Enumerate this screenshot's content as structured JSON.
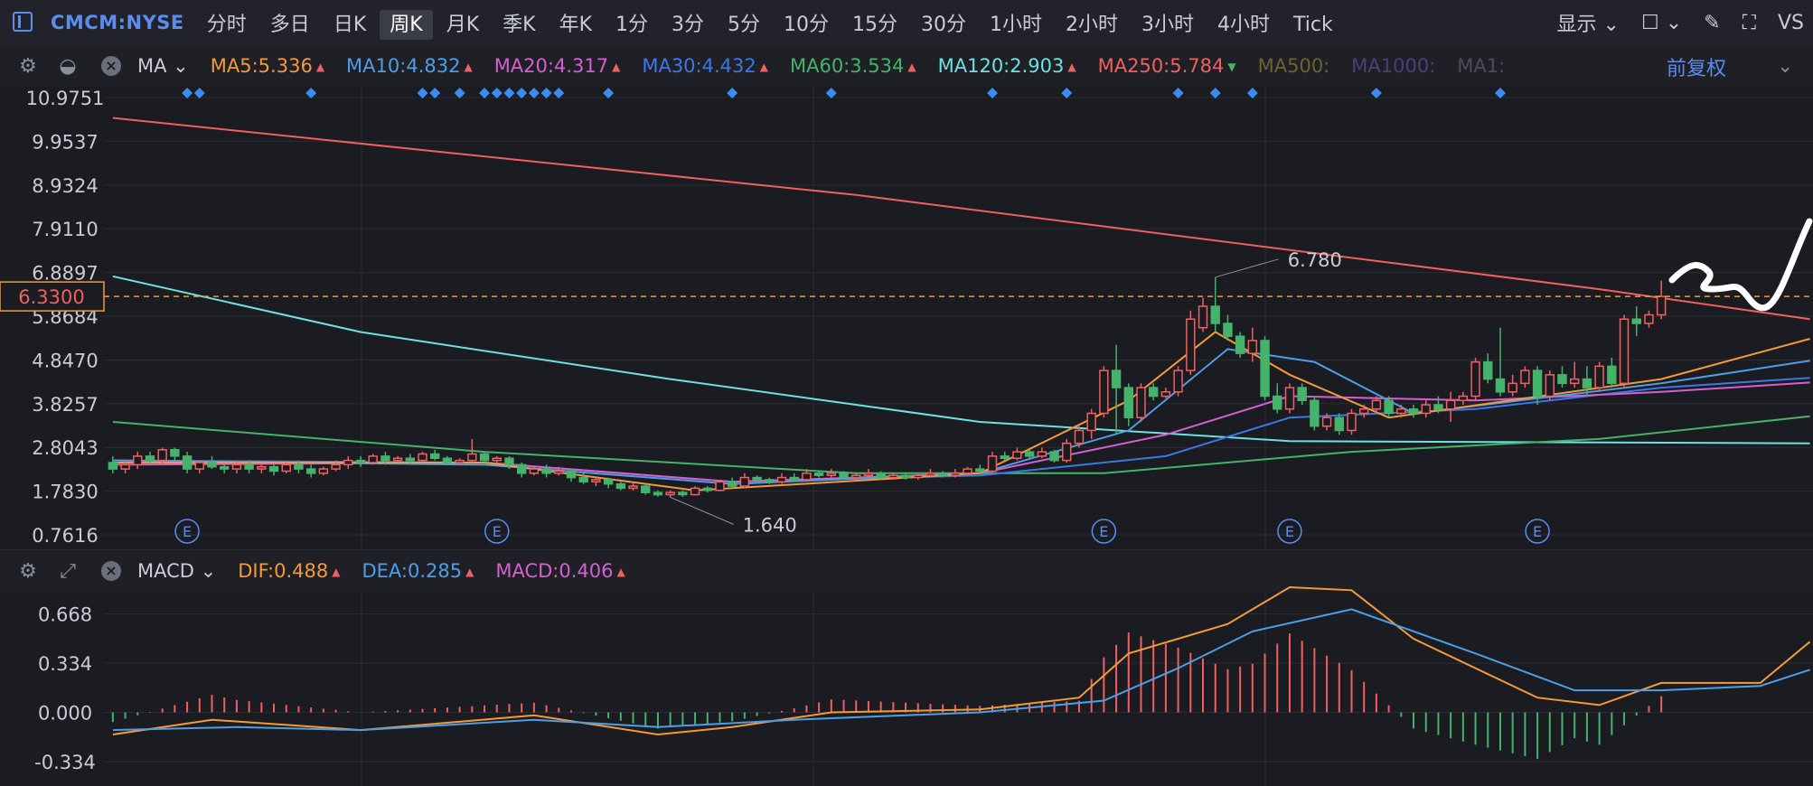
{
  "toolbar": {
    "symbol": "CMCM:NYSE",
    "timeframes": [
      "分时",
      "多日",
      "日K",
      "周K",
      "月K",
      "季K",
      "年K",
      "1分",
      "3分",
      "5分",
      "10分",
      "15分",
      "30分",
      "1小时",
      "2小时",
      "3小时",
      "4小时",
      "Tick"
    ],
    "active_timeframe": "周K",
    "display_label": "显示",
    "vs_label": "VS"
  },
  "ma_bar": {
    "selector": "MA",
    "items": [
      {
        "label": "MA5:5.336",
        "color": "#f29a3b",
        "arrow": "up"
      },
      {
        "label": "MA10:4.832",
        "color": "#4d9ee8",
        "arrow": "up"
      },
      {
        "label": "MA20:4.317",
        "color": "#d55fd0",
        "arrow": "up"
      },
      {
        "label": "MA30:4.432",
        "color": "#3b78e6",
        "arrow": "up"
      },
      {
        "label": "MA60:3.534",
        "color": "#45b36b",
        "arrow": "up"
      },
      {
        "label": "MA120:2.903",
        "color": "#6fe0e0",
        "arrow": "up"
      },
      {
        "label": "MA250:5.784",
        "color": "#f06060",
        "arrow": "down"
      },
      {
        "label": "MA500:",
        "color": "#6b6430",
        "arrow": ""
      },
      {
        "label": "MA1000:",
        "color": "#4b3f7a",
        "arrow": ""
      },
      {
        "label": "MA1:",
        "color": "#4a4d57",
        "arrow": ""
      }
    ],
    "adjust_label": "前复权"
  },
  "macd_bar": {
    "selector": "MACD",
    "items": [
      {
        "label": "DIF:0.488",
        "color": "#f29a3b"
      },
      {
        "label": "DEA:0.285",
        "color": "#4d9ee8"
      },
      {
        "label": "MACD:0.406",
        "color": "#d55fd0"
      }
    ]
  },
  "chart_data": {
    "type": "candlestick",
    "price_axis": {
      "ticks": [
        "10.9751",
        "9.9537",
        "8.9324",
        "7.9110",
        "6.8897",
        "5.8684",
        "4.8470",
        "3.8257",
        "2.8043",
        "1.7830",
        "0.7616"
      ],
      "range": [
        0.7616,
        10.9751
      ]
    },
    "current_price": "6.3300",
    "annotations": [
      {
        "text": "6.780",
        "value": 6.78,
        "type": "high"
      },
      {
        "text": "1.640",
        "value": 1.64,
        "type": "low"
      }
    ],
    "earnings_marker": "E",
    "candles": [
      [
        2.45,
        2.3,
        2.6,
        2.2
      ],
      [
        2.3,
        2.4,
        2.5,
        2.2
      ],
      [
        2.4,
        2.6,
        2.7,
        2.3
      ],
      [
        2.6,
        2.5,
        2.7,
        2.4
      ],
      [
        2.5,
        2.75,
        2.8,
        2.4
      ],
      [
        2.75,
        2.6,
        2.8,
        2.5
      ],
      [
        2.6,
        2.3,
        2.7,
        2.2
      ],
      [
        2.3,
        2.45,
        2.5,
        2.2
      ],
      [
        2.45,
        2.35,
        2.6,
        2.3
      ],
      [
        2.35,
        2.3,
        2.4,
        2.2
      ],
      [
        2.3,
        2.4,
        2.5,
        2.2
      ],
      [
        2.4,
        2.3,
        2.5,
        2.2
      ],
      [
        2.3,
        2.35,
        2.4,
        2.2
      ],
      [
        2.35,
        2.25,
        2.4,
        2.15
      ],
      [
        2.25,
        2.4,
        2.45,
        2.2
      ],
      [
        2.4,
        2.3,
        2.5,
        2.2
      ],
      [
        2.3,
        2.2,
        2.4,
        2.1
      ],
      [
        2.2,
        2.3,
        2.35,
        2.15
      ],
      [
        2.3,
        2.4,
        2.5,
        2.25
      ],
      [
        2.4,
        2.5,
        2.6,
        2.3
      ],
      [
        2.5,
        2.45,
        2.6,
        2.35
      ],
      [
        2.45,
        2.6,
        2.65,
        2.4
      ],
      [
        2.6,
        2.5,
        2.7,
        2.4
      ],
      [
        2.5,
        2.55,
        2.6,
        2.45
      ],
      [
        2.55,
        2.5,
        2.65,
        2.4
      ],
      [
        2.5,
        2.65,
        2.7,
        2.45
      ],
      [
        2.65,
        2.55,
        2.75,
        2.5
      ],
      [
        2.55,
        2.45,
        2.6,
        2.4
      ],
      [
        2.45,
        2.5,
        2.55,
        2.4
      ],
      [
        2.5,
        2.65,
        3.0,
        2.45
      ],
      [
        2.65,
        2.5,
        2.7,
        2.4
      ],
      [
        2.5,
        2.55,
        2.6,
        2.45
      ],
      [
        2.55,
        2.4,
        2.6,
        2.3
      ],
      [
        2.4,
        2.2,
        2.45,
        2.1
      ],
      [
        2.2,
        2.3,
        2.35,
        2.15
      ],
      [
        2.3,
        2.2,
        2.4,
        2.1
      ],
      [
        2.2,
        2.25,
        2.35,
        2.15
      ],
      [
        2.25,
        2.1,
        2.3,
        2.0
      ],
      [
        2.1,
        2.0,
        2.2,
        1.95
      ],
      [
        2.0,
        2.05,
        2.1,
        1.9
      ],
      [
        2.05,
        1.95,
        2.1,
        1.85
      ],
      [
        1.95,
        1.85,
        2.0,
        1.8
      ],
      [
        1.85,
        1.9,
        2.0,
        1.8
      ],
      [
        1.9,
        1.75,
        1.95,
        1.7
      ],
      [
        1.75,
        1.7,
        1.8,
        1.65
      ],
      [
        1.7,
        1.75,
        1.8,
        1.64
      ],
      [
        1.75,
        1.7,
        1.8,
        1.65
      ],
      [
        1.7,
        1.85,
        1.9,
        1.68
      ],
      [
        1.85,
        1.8,
        1.9,
        1.75
      ],
      [
        1.8,
        2.0,
        2.05,
        1.78
      ],
      [
        2.0,
        1.9,
        2.1,
        1.85
      ],
      [
        1.9,
        2.1,
        2.2,
        1.85
      ],
      [
        2.1,
        2.05,
        2.15,
        2.0
      ],
      [
        2.05,
        2.0,
        2.1,
        1.95
      ],
      [
        2.0,
        2.1,
        2.2,
        1.95
      ],
      [
        2.1,
        2.05,
        2.2,
        2.0
      ],
      [
        2.05,
        2.2,
        2.3,
        2.0
      ],
      [
        2.2,
        2.15,
        2.25,
        2.1
      ],
      [
        2.15,
        2.2,
        2.3,
        2.1
      ],
      [
        2.2,
        2.1,
        2.25,
        2.05
      ],
      [
        2.1,
        2.15,
        2.2,
        2.05
      ],
      [
        2.15,
        2.2,
        2.3,
        2.1
      ],
      [
        2.2,
        2.1,
        2.25,
        2.05
      ],
      [
        2.1,
        2.15,
        2.2,
        2.05
      ],
      [
        2.15,
        2.1,
        2.2,
        2.05
      ],
      [
        2.1,
        2.15,
        2.2,
        2.05
      ],
      [
        2.15,
        2.2,
        2.3,
        2.1
      ],
      [
        2.2,
        2.15,
        2.25,
        2.1
      ],
      [
        2.15,
        2.2,
        2.3,
        2.1
      ],
      [
        2.2,
        2.3,
        2.35,
        2.15
      ],
      [
        2.3,
        2.25,
        2.4,
        2.2
      ],
      [
        2.25,
        2.6,
        2.7,
        2.2
      ],
      [
        2.6,
        2.55,
        2.7,
        2.5
      ],
      [
        2.55,
        2.7,
        2.8,
        2.5
      ],
      [
        2.7,
        2.6,
        2.75,
        2.55
      ],
      [
        2.6,
        2.7,
        2.8,
        2.55
      ],
      [
        2.7,
        2.5,
        2.75,
        2.45
      ],
      [
        2.5,
        2.9,
        3.0,
        2.45
      ],
      [
        2.9,
        3.2,
        3.3,
        2.8
      ],
      [
        3.2,
        3.6,
        3.7,
        3.0
      ],
      [
        3.6,
        4.6,
        4.7,
        3.5
      ],
      [
        4.6,
        4.2,
        5.2,
        3.1
      ],
      [
        4.2,
        3.5,
        4.3,
        3.3
      ],
      [
        3.5,
        4.2,
        4.3,
        3.4
      ],
      [
        4.2,
        4.0,
        4.3,
        3.9
      ],
      [
        4.0,
        4.1,
        4.2,
        3.95
      ],
      [
        4.1,
        4.6,
        4.7,
        4.0
      ],
      [
        4.6,
        5.8,
        6.0,
        4.5
      ],
      [
        5.6,
        6.1,
        6.3,
        5.5
      ],
      [
        6.1,
        5.7,
        6.78,
        5.5
      ],
      [
        5.7,
        5.4,
        5.9,
        5.3
      ],
      [
        5.4,
        5.0,
        5.5,
        4.9
      ],
      [
        5.0,
        5.3,
        5.6,
        4.8
      ],
      [
        5.3,
        4.0,
        5.4,
        3.9
      ],
      [
        4.0,
        3.7,
        4.3,
        3.6
      ],
      [
        3.7,
        4.2,
        4.3,
        3.6
      ],
      [
        4.2,
        3.9,
        4.3,
        3.8
      ],
      [
        3.9,
        3.3,
        4.0,
        3.2
      ],
      [
        3.3,
        3.5,
        3.6,
        3.2
      ],
      [
        3.5,
        3.2,
        3.6,
        3.1
      ],
      [
        3.2,
        3.6,
        3.7,
        3.1
      ],
      [
        3.6,
        3.7,
        3.8,
        3.5
      ],
      [
        3.7,
        3.9,
        4.0,
        3.6
      ],
      [
        3.9,
        3.6,
        4.0,
        3.5
      ],
      [
        3.6,
        3.7,
        3.8,
        3.5
      ],
      [
        3.7,
        3.6,
        3.8,
        3.5
      ],
      [
        3.6,
        3.8,
        3.9,
        3.5
      ],
      [
        3.8,
        3.7,
        4.0,
        3.6
      ],
      [
        3.7,
        3.9,
        4.1,
        3.4
      ],
      [
        3.9,
        4.0,
        4.1,
        3.8
      ],
      [
        4.0,
        4.8,
        4.9,
        3.9
      ],
      [
        4.8,
        4.4,
        5.0,
        4.3
      ],
      [
        4.4,
        4.1,
        5.6,
        4.0
      ],
      [
        4.1,
        4.3,
        4.5,
        4.0
      ],
      [
        4.3,
        4.6,
        4.7,
        4.2
      ],
      [
        4.6,
        4.0,
        4.7,
        3.8
      ],
      [
        4.0,
        4.5,
        4.6,
        3.9
      ],
      [
        4.5,
        4.3,
        4.7,
        4.2
      ],
      [
        4.3,
        4.4,
        4.8,
        4.2
      ],
      [
        4.4,
        4.2,
        4.7,
        4.0
      ],
      [
        4.2,
        4.7,
        4.8,
        4.1
      ],
      [
        4.7,
        4.3,
        4.9,
        4.2
      ],
      [
        4.3,
        5.8,
        5.9,
        4.2
      ],
      [
        5.8,
        5.7,
        6.1,
        5.4
      ],
      [
        5.7,
        5.9,
        6.0,
        5.6
      ],
      [
        5.9,
        6.33,
        6.7,
        5.8
      ]
    ],
    "ma_lines": [
      {
        "name": "MA250",
        "color": "#f06060",
        "points": [
          [
            0,
            10.5
          ],
          [
            60,
            8.7
          ],
          [
            120,
            6.5
          ],
          [
            137,
            5.8
          ]
        ]
      },
      {
        "name": "MA120",
        "color": "#6fe0e0",
        "points": [
          [
            0,
            6.8
          ],
          [
            20,
            5.5
          ],
          [
            45,
            4.4
          ],
          [
            70,
            3.4
          ],
          [
            95,
            2.95
          ],
          [
            137,
            2.9
          ]
        ]
      },
      {
        "name": "MA60",
        "color": "#45b36b",
        "points": [
          [
            0,
            3.4
          ],
          [
            30,
            2.7
          ],
          [
            60,
            2.2
          ],
          [
            80,
            2.2
          ],
          [
            100,
            2.7
          ],
          [
            120,
            3.0
          ],
          [
            137,
            3.53
          ]
        ]
      },
      {
        "name": "MA30",
        "color": "#3b78e6",
        "points": [
          [
            0,
            2.5
          ],
          [
            30,
            2.45
          ],
          [
            50,
            2.0
          ],
          [
            70,
            2.15
          ],
          [
            85,
            2.6
          ],
          [
            95,
            3.5
          ],
          [
            110,
            3.7
          ],
          [
            125,
            4.2
          ],
          [
            137,
            4.43
          ]
        ]
      },
      {
        "name": "MA20",
        "color": "#d55fd0",
        "points": [
          [
            0,
            2.4
          ],
          [
            30,
            2.45
          ],
          [
            50,
            2.0
          ],
          [
            70,
            2.2
          ],
          [
            85,
            3.1
          ],
          [
            95,
            4.0
          ],
          [
            110,
            3.9
          ],
          [
            125,
            4.1
          ],
          [
            137,
            4.32
          ]
        ]
      },
      {
        "name": "MA10",
        "color": "#4d9ee8",
        "points": [
          [
            0,
            2.5
          ],
          [
            30,
            2.4
          ],
          [
            50,
            1.95
          ],
          [
            70,
            2.2
          ],
          [
            82,
            3.2
          ],
          [
            90,
            5.1
          ],
          [
            97,
            4.8
          ],
          [
            105,
            3.6
          ],
          [
            125,
            4.3
          ],
          [
            137,
            4.83
          ]
        ]
      },
      {
        "name": "MA5",
        "color": "#f29a3b",
        "points": [
          [
            0,
            2.45
          ],
          [
            30,
            2.45
          ],
          [
            47,
            1.8
          ],
          [
            70,
            2.2
          ],
          [
            82,
            3.9
          ],
          [
            89,
            5.5
          ],
          [
            95,
            4.5
          ],
          [
            103,
            3.5
          ],
          [
            125,
            4.4
          ],
          [
            137,
            5.34
          ]
        ]
      }
    ],
    "earnings_positions": [
      6,
      31,
      80,
      95,
      115
    ],
    "dividend_positions": [
      6,
      7,
      16,
      25,
      26,
      28,
      30,
      31,
      32,
      33,
      34,
      35,
      36,
      40,
      50,
      58,
      71,
      77,
      86,
      89,
      92,
      102,
      112
    ],
    "macd_axis": {
      "ticks": [
        "0.668",
        "0.334",
        "0.000",
        "-0.334"
      ],
      "range": [
        -0.5,
        0.85
      ]
    },
    "macd": {
      "dif": [
        [
          0,
          -0.15
        ],
        [
          8,
          -0.05
        ],
        [
          20,
          -0.12
        ],
        [
          34,
          -0.02
        ],
        [
          44,
          -0.15
        ],
        [
          50,
          -0.1
        ],
        [
          58,
          0.0
        ],
        [
          70,
          0.02
        ],
        [
          78,
          0.1
        ],
        [
          82,
          0.4
        ],
        [
          86,
          0.5
        ],
        [
          90,
          0.6
        ],
        [
          95,
          0.85
        ],
        [
          100,
          0.83
        ],
        [
          105,
          0.5
        ],
        [
          115,
          0.1
        ],
        [
          120,
          0.05
        ],
        [
          125,
          0.2
        ],
        [
          133,
          0.2
        ],
        [
          137,
          0.48
        ]
      ],
      "dea": [
        [
          0,
          -0.12
        ],
        [
          10,
          -0.1
        ],
        [
          20,
          -0.12
        ],
        [
          34,
          -0.05
        ],
        [
          44,
          -0.1
        ],
        [
          55,
          -0.05
        ],
        [
          70,
          0.0
        ],
        [
          80,
          0.08
        ],
        [
          86,
          0.3
        ],
        [
          92,
          0.55
        ],
        [
          100,
          0.7
        ],
        [
          110,
          0.4
        ],
        [
          118,
          0.15
        ],
        [
          125,
          0.15
        ],
        [
          133,
          0.18
        ],
        [
          137,
          0.29
        ]
      ]
    }
  }
}
